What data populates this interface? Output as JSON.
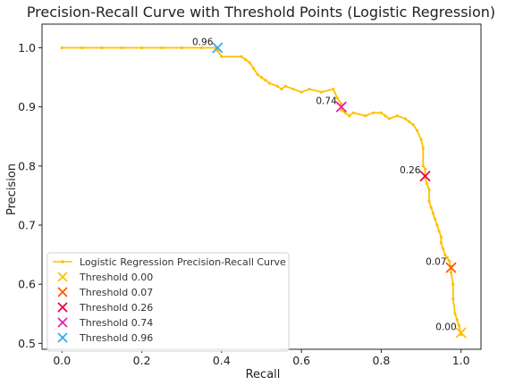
{
  "chart_data": {
    "type": "line",
    "title": "Precision-Recall Curve with Threshold Points (Logistic Regression)",
    "xlabel": "Recall",
    "ylabel": "Precision",
    "xlim": [
      -0.05,
      1.05
    ],
    "ylim": [
      0.49,
      1.04
    ],
    "xticks": [
      0.0,
      0.2,
      0.4,
      0.6,
      0.8,
      1.0
    ],
    "xtick_labels": [
      "0.0",
      "0.2",
      "0.4",
      "0.6",
      "0.8",
      "1.0"
    ],
    "yticks": [
      0.5,
      0.6,
      0.7,
      0.8,
      0.9,
      1.0
    ],
    "ytick_labels": [
      "0.5",
      "0.6",
      "0.7",
      "0.8",
      "0.9",
      "1.0"
    ],
    "grid": false,
    "legend_position": "lower-left",
    "series": [
      {
        "name": "Logistic Regression Precision-Recall Curve",
        "color": "#FFC000",
        "marker": "dot",
        "x": [
          0.0,
          0.05,
          0.1,
          0.15,
          0.2,
          0.25,
          0.3,
          0.35,
          0.385,
          0.39,
          0.4,
          0.45,
          0.46,
          0.47,
          0.48,
          0.49,
          0.5,
          0.51,
          0.52,
          0.54,
          0.55,
          0.56,
          0.58,
          0.6,
          0.62,
          0.65,
          0.68,
          0.69,
          0.7,
          0.7,
          0.71,
          0.72,
          0.73,
          0.76,
          0.78,
          0.8,
          0.81,
          0.82,
          0.84,
          0.86,
          0.87,
          0.88,
          0.89,
          0.9,
          0.905,
          0.905,
          0.91,
          0.91,
          0.915,
          0.92,
          0.92,
          0.925,
          0.93,
          0.935,
          0.94,
          0.945,
          0.95,
          0.95,
          0.955,
          0.96,
          0.965,
          0.97,
          0.975,
          0.975,
          0.98,
          0.98,
          0.985,
          0.99,
          0.995,
          1.0
        ],
        "y": [
          1.0,
          1.0,
          1.0,
          1.0,
          1.0,
          1.0,
          1.0,
          1.0,
          1.0,
          0.995,
          0.985,
          0.985,
          0.98,
          0.975,
          0.965,
          0.955,
          0.95,
          0.945,
          0.94,
          0.935,
          0.93,
          0.935,
          0.93,
          0.925,
          0.93,
          0.925,
          0.93,
          0.915,
          0.905,
          0.895,
          0.89,
          0.885,
          0.89,
          0.885,
          0.89,
          0.89,
          0.885,
          0.88,
          0.885,
          0.88,
          0.875,
          0.87,
          0.86,
          0.845,
          0.83,
          0.8,
          0.795,
          0.78,
          0.77,
          0.76,
          0.74,
          0.73,
          0.72,
          0.71,
          0.7,
          0.69,
          0.68,
          0.67,
          0.66,
          0.65,
          0.645,
          0.64,
          0.63,
          0.62,
          0.6,
          0.575,
          0.55,
          0.54,
          0.53,
          0.515
        ]
      }
    ],
    "threshold_points": [
      {
        "name": "Threshold 0.00",
        "label": "0.00",
        "x": 1.0,
        "y": 0.518,
        "color": "#FFC000"
      },
      {
        "name": "Threshold 0.07",
        "label": "0.07",
        "x": 0.975,
        "y": 0.628,
        "color": "#FF5A00"
      },
      {
        "name": "Threshold 0.26",
        "label": "0.26",
        "x": 0.91,
        "y": 0.783,
        "color": "#E8004A"
      },
      {
        "name": "Threshold 0.74",
        "label": "0.74",
        "x": 0.7,
        "y": 0.9,
        "color": "#E81EB4"
      },
      {
        "name": "Threshold 0.96",
        "label": "0.96",
        "x": 0.39,
        "y": 1.0,
        "color": "#3BA8F0"
      }
    ]
  }
}
